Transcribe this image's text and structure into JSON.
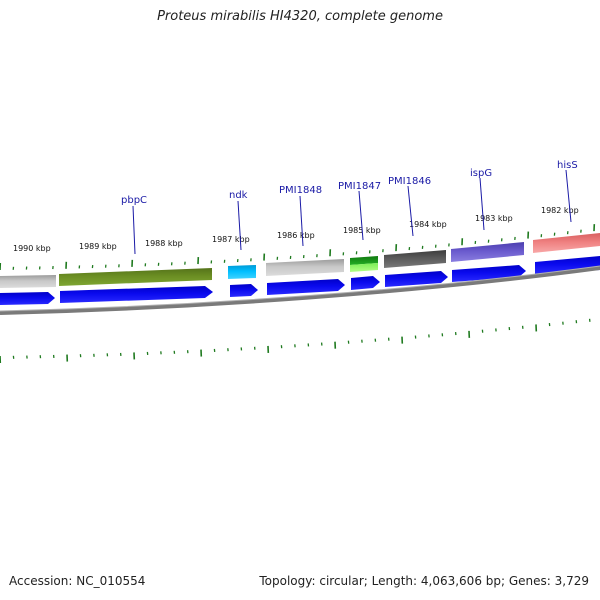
{
  "title": "Proteus mirabilis HI4320, complete genome",
  "footer": {
    "accession": "Accession: NC_010554",
    "summary": "Topology: circular; Length: 4,063,606 bp; Genes: 3,729"
  },
  "ruler_labels": [
    "1990 kbp",
    "1989 kbp",
    "1988 kbp",
    "1987 kbp",
    "1986 kbp",
    "1985 kbp",
    "1984 kbp",
    "1983 kbp",
    "1982 kbp"
  ],
  "gene_labels": [
    "pbpC",
    "ndk",
    "PMI1848",
    "PMI1847",
    "PMI1846",
    "ispG",
    "hisS"
  ],
  "colors": {
    "cds": "#0a0aee",
    "tick": "#1f7a1f",
    "label": "#1a1aa6",
    "backbone": "#7a7a7a",
    "feature_gray": "#b8b8b8",
    "feature_olive": "#6b8e23",
    "feature_cyan": "#00bfff",
    "feature_green": "#1e9e1e",
    "feature_lime": "#9aff6a",
    "feature_dark": "#5a5a5a",
    "feature_purple": "#6a5acd",
    "feature_pink": "#ef8080"
  }
}
